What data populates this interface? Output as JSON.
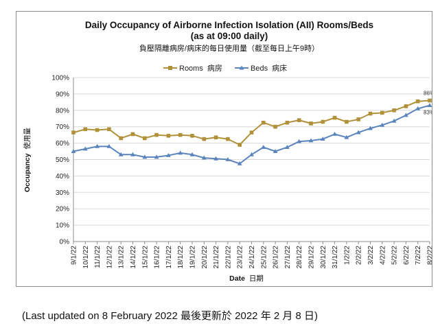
{
  "chart_data": {
    "type": "line",
    "title": "Daily Occupancy of Airborne Infection Isolation (AII) Rooms/Beds",
    "title_line2": "(as at 09:00 daily)",
    "subtitle": "負壓隔離病房/病床的每日使用量（截至每日上午9時）",
    "xlabel": "Date",
    "xlabel_zh": "日期",
    "ylabel": "Occupancy",
    "ylabel_zh": "使用量",
    "ylim": [
      0,
      100
    ],
    "yticks": [
      "0%",
      "10%",
      "20%",
      "30%",
      "40%",
      "50%",
      "60%",
      "70%",
      "80%",
      "90%",
      "100%"
    ],
    "grid": true,
    "legend_position": "top",
    "categories": [
      "9/1/22",
      "10/1/22",
      "11/1/22",
      "12/1/22",
      "13/1/22",
      "14/1/22",
      "15/1/22",
      "16/1/22",
      "17/1/22",
      "18/1/22",
      "19/1/22",
      "20/1/22",
      "21/1/22",
      "22/1/22",
      "23/1/22",
      "24/1/22",
      "25/1/22",
      "26/1/22",
      "27/1/22",
      "28/1/22",
      "29/1/22",
      "30/1/22",
      "31/1/22",
      "1/2/22",
      "2/2/22",
      "3/2/22",
      "4/2/22",
      "5/2/22",
      "6/2/22",
      "7/2/22",
      "8/2/22"
    ],
    "series": [
      {
        "name": "Rooms",
        "name_zh": "病房",
        "color": "#b0913a",
        "marker": "square",
        "values": [
          66.5,
          68.5,
          68,
          68.5,
          63,
          65.5,
          63,
          65,
          64.5,
          65,
          64.5,
          62.5,
          63.5,
          62.5,
          59,
          66.5,
          72.5,
          70,
          72.5,
          74,
          72,
          73,
          75.5,
          73,
          74.5,
          78,
          78.5,
          80,
          82.5,
          85.5,
          86
        ],
        "end_label": "86%"
      },
      {
        "name": "Beds",
        "name_zh": "病床",
        "color": "#5b84bd",
        "marker": "triangle",
        "values": [
          55,
          56.5,
          58,
          58,
          53,
          53,
          51.5,
          51.5,
          52.5,
          54,
          53,
          51,
          50.5,
          50,
          47.5,
          53,
          57.5,
          55,
          57.5,
          61,
          61.5,
          62.5,
          65.5,
          63.5,
          66.5,
          69,
          71,
          73.5,
          77,
          81,
          83
        ],
        "end_label": "83%"
      }
    ]
  },
  "footnote": "(Last updated on 8 February 2022  最後更新於 2022 年 2 月 8 日)"
}
